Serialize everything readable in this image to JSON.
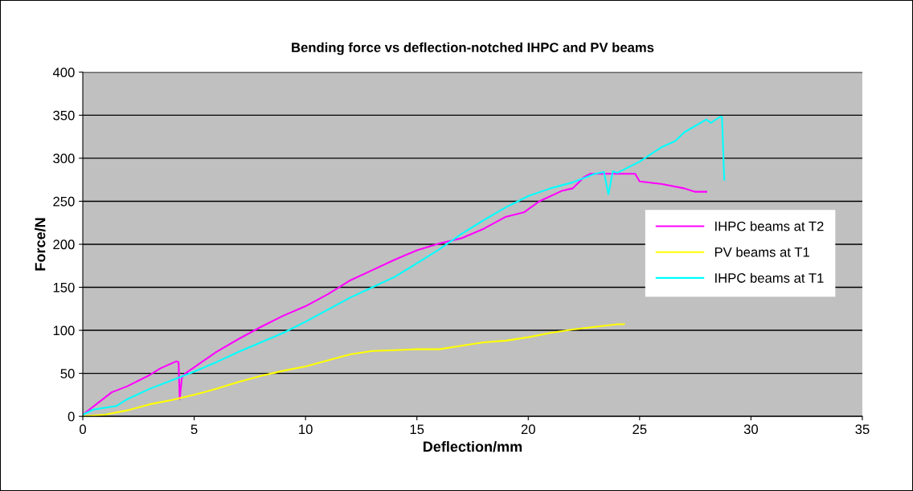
{
  "chart_data": {
    "type": "line",
    "title": "Bending force vs deflection-notched IHPC and PV beams",
    "xlabel": "Deflection/mm",
    "ylabel": "Force/N",
    "xlim": [
      0,
      35
    ],
    "xticks": [
      0,
      5,
      10,
      15,
      20,
      25,
      30,
      35
    ],
    "ylim": [
      0,
      400
    ],
    "yticks": [
      0,
      50,
      100,
      150,
      200,
      250,
      300,
      350,
      400
    ],
    "grid": "y",
    "legend": "right",
    "marker": "none",
    "line_style": "solid",
    "series": [
      {
        "name": "IHPC beams at T2",
        "color": "#ff00ff",
        "x": [
          0,
          0.3,
          0.8,
          1.3,
          2,
          3,
          3.5,
          4.2,
          4.3,
          4.35,
          4.45,
          4.6,
          5,
          6,
          7,
          8,
          9,
          10,
          11,
          11.5,
          12,
          13,
          14,
          15,
          16,
          17,
          18,
          19,
          19.8,
          20.5,
          21.5,
          22,
          22.5,
          22.8,
          24.8,
          25,
          26,
          27,
          27.5,
          28
        ],
        "values": [
          2,
          8,
          18,
          28,
          35,
          48,
          56,
          64,
          63,
          20,
          45,
          50,
          57,
          75,
          90,
          104,
          117,
          128,
          142,
          150,
          158,
          170,
          182,
          193,
          201,
          207,
          218,
          232,
          237,
          250,
          262,
          265,
          278,
          282,
          282,
          273,
          270,
          265,
          261,
          261
        ]
      },
      {
        "name": "PV beams at T1",
        "color": "#ffff00",
        "x": [
          0,
          1,
          2,
          3,
          4,
          5,
          6,
          7,
          8,
          9,
          10,
          11,
          12,
          13,
          14,
          15,
          16,
          17,
          18,
          19,
          20,
          21,
          22,
          23,
          24,
          24.3
        ],
        "values": [
          0,
          2,
          7,
          14,
          19,
          25,
          32,
          40,
          47,
          53,
          58,
          65,
          72,
          76,
          77,
          78,
          78,
          82,
          86,
          88,
          92,
          97,
          101,
          104,
          107,
          107
        ]
      },
      {
        "name": "IHPC beams at T1",
        "color": "#00ffff",
        "x": [
          0,
          0.5,
          1.5,
          2,
          3,
          4,
          5,
          6,
          7,
          8,
          9,
          10,
          11,
          12,
          13,
          14,
          15,
          16,
          17,
          18,
          19,
          20,
          21,
          22,
          23,
          23.4,
          23.6,
          23.8,
          24,
          25,
          26,
          26.6,
          27,
          28,
          28.2,
          28.6,
          28.7,
          28.8
        ],
        "values": [
          2,
          8,
          12,
          20,
          32,
          42,
          52,
          63,
          75,
          86,
          97,
          110,
          124,
          138,
          150,
          162,
          178,
          194,
          212,
          228,
          243,
          256,
          265,
          272,
          282,
          284,
          258,
          285,
          283,
          296,
          313,
          320,
          330,
          345,
          341,
          348,
          348,
          275
        ]
      }
    ]
  }
}
